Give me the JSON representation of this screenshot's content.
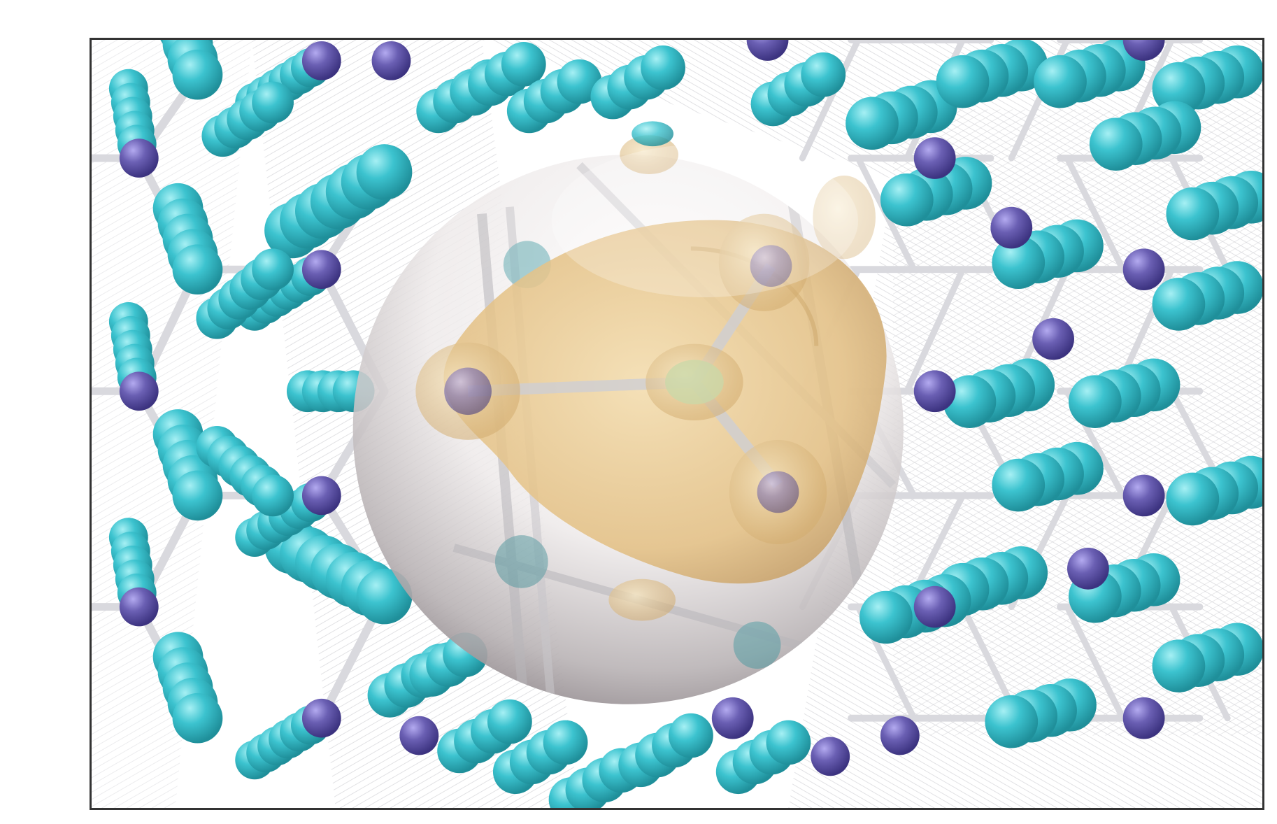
{
  "figure": {
    "description_hidden": "",
    "colors": {
      "background": "#ffffff",
      "frame_border": "#333333",
      "atom_cyan": "#3cc3cf",
      "atom_cyan_highlight": "#8fe6ec",
      "atom_purple": "#6a5fb3",
      "atom_purple_highlight": "#a79ee0",
      "bond_light": "#e2e2e6",
      "bond_shadow": "#a7a7ad",
      "sphere_highlight": "#ffffff",
      "sphere_shade": "#9a9498",
      "isosurface_gold": "#e8c78f",
      "isosurface_gold_dark": "#c9a366"
    },
    "elements": [
      {
        "name": "lattice-left",
        "kind": "crystal-lattice"
      },
      {
        "name": "lattice-right",
        "kind": "crystal-lattice"
      },
      {
        "name": "defect-sphere",
        "kind": "transparent-sphere"
      },
      {
        "name": "charge-density-isosurface",
        "kind": "isosurface"
      }
    ]
  }
}
